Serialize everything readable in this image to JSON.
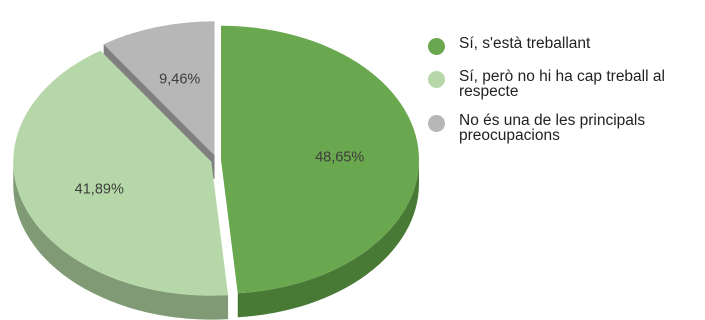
{
  "chart_data": {
    "type": "pie",
    "style": "3d",
    "legend_position": "right",
    "slices": [
      {
        "label": "Sí, s'està treballant",
        "value": 48.65,
        "value_label": "48,65%",
        "color": "#6aa84f",
        "side_color": "#497a35"
      },
      {
        "label": "Sí, però no hi ha cap treball al respecte",
        "value": 41.89,
        "value_label": "41,89%",
        "color": "#b6d7a8",
        "side_color": "#7f9a74"
      },
      {
        "label": "No és una de les principals preocupacions",
        "value": 9.46,
        "value_label": "9,46%",
        "color": "#b7b7b7",
        "side_color": "#808080"
      }
    ]
  },
  "legend": {
    "items": [
      {
        "label": "Sí, s'està treballant",
        "color": "#6aa84f"
      },
      {
        "label": "Sí, però no hi ha cap treball al respecte",
        "color": "#b6d7a8"
      },
      {
        "label": "No és una de les principals preocupacions",
        "color": "#b7b7b7"
      }
    ]
  }
}
